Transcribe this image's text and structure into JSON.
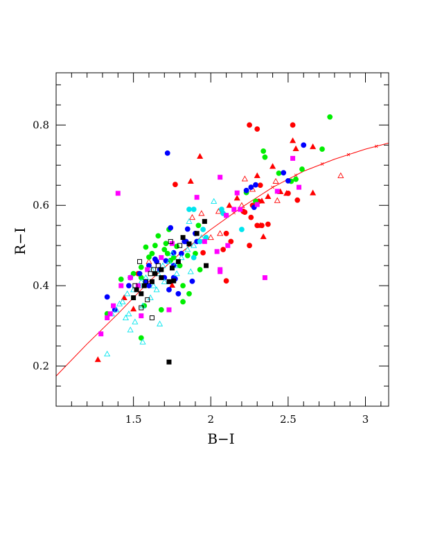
{
  "chart_data": {
    "type": "scatter",
    "xlabel": "B−I",
    "ylabel": "R−I",
    "xlim": [
      1.0,
      3.15
    ],
    "ylim": [
      0.1,
      0.93
    ],
    "xticks": [
      1.5,
      2,
      2.5,
      3
    ],
    "xtick_labels": [
      "1.5",
      "2",
      "2.5",
      "3"
    ],
    "yticks": [
      0.2,
      0.4,
      0.6,
      0.8
    ],
    "ytick_labels": [
      "0.2",
      "0.4",
      "0.6",
      "0.8"
    ],
    "grid": false,
    "colors": {
      "red": "#ff0000",
      "green": "#00ee00",
      "blue": "#0000ff",
      "cyan": "#00e5ee",
      "magenta": "#ff00ff",
      "black": "#000000"
    },
    "curve": {
      "color": "#ff0000",
      "x": [
        1.0,
        1.2,
        1.4,
        1.6,
        1.8,
        2.0,
        2.2,
        2.4,
        2.6,
        2.8,
        3.0,
        3.15
      ],
      "y": [
        0.175,
        0.255,
        0.33,
        0.41,
        0.48,
        0.54,
        0.595,
        0.645,
        0.685,
        0.715,
        0.74,
        0.755
      ],
      "markers_x": [
        2.15,
        2.4,
        2.55,
        2.72,
        2.89,
        3.07
      ]
    },
    "series": [
      {
        "marker": "circle",
        "color": "red",
        "filled": true,
        "x": [
          2.25,
          2.3,
          2.53,
          2.31,
          1.77,
          2.5,
          2.3,
          2.26,
          2.22,
          2.27,
          2.37,
          2.33,
          2.1,
          2.25,
          2.13,
          2.08,
          2.1,
          1.53,
          2.56,
          2.32,
          2.21,
          1.95
        ],
        "y": [
          0.8,
          0.79,
          0.8,
          0.61,
          0.652,
          0.63,
          0.55,
          0.57,
          0.583,
          0.6,
          0.553,
          0.55,
          0.53,
          0.5,
          0.51,
          0.49,
          0.412,
          0.43,
          0.613,
          0.65,
          0.585,
          0.482
        ]
      },
      {
        "marker": "triangle",
        "color": "red",
        "filled": true,
        "x": [
          1.93,
          1.87,
          2.53,
          2.55,
          2.66,
          2.66,
          2.4,
          2.45,
          2.12,
          2.17,
          2.3,
          2.33,
          2.37,
          2.49,
          1.27,
          1.5,
          1.44,
          1.75,
          2.32,
          2.34
        ],
        "y": [
          0.722,
          0.66,
          0.761,
          0.741,
          0.746,
          0.631,
          0.697,
          0.634,
          0.6,
          0.618,
          0.674,
          0.611,
          0.622,
          0.63,
          0.216,
          0.342,
          0.37,
          0.401,
          0.55,
          0.522
        ]
      },
      {
        "marker": "triangle",
        "color": "red",
        "filled": false,
        "x": [
          2.84,
          2.42,
          2.22,
          2.27,
          2.43,
          1.94,
          1.88,
          2.05,
          2.0,
          2.06,
          2.2,
          1.6
        ],
        "y": [
          0.674,
          0.66,
          0.666,
          0.64,
          0.612,
          0.58,
          0.57,
          0.585,
          0.52,
          0.53,
          0.6,
          0.46
        ]
      },
      {
        "marker": "circle",
        "color": "green",
        "filled": true,
        "x": [
          2.77,
          2.72,
          2.59,
          2.55,
          2.44,
          2.52,
          2.34,
          2.35,
          2.23,
          2.29,
          1.92,
          1.78,
          1.72,
          1.74,
          1.71,
          1.66,
          1.7,
          1.6,
          1.58,
          1.55,
          1.55,
          1.5,
          1.42,
          1.33,
          1.55,
          1.76,
          1.82,
          1.86,
          1.93,
          1.73,
          1.68,
          1.57,
          1.8,
          1.85,
          1.9,
          1.82,
          1.62,
          1.64
        ],
        "y": [
          0.82,
          0.74,
          0.69,
          0.665,
          0.68,
          0.66,
          0.735,
          0.72,
          0.632,
          0.61,
          0.55,
          0.498,
          0.48,
          0.463,
          0.505,
          0.524,
          0.49,
          0.471,
          0.496,
          0.446,
          0.42,
          0.43,
          0.416,
          0.33,
          0.27,
          0.47,
          0.4,
          0.38,
          0.44,
          0.54,
          0.34,
          0.35,
          0.45,
          0.475,
          0.48,
          0.36,
          0.48,
          0.5
        ]
      },
      {
        "marker": "circle",
        "color": "blue",
        "filled": true,
        "x": [
          1.72,
          2.6,
          2.47,
          2.5,
          2.29,
          2.26,
          2.23,
          1.74,
          1.85,
          1.9,
          1.84,
          1.76,
          1.81,
          1.77,
          1.83,
          1.65,
          1.64,
          1.6,
          1.67,
          1.71,
          1.76,
          1.6,
          1.58,
          1.54,
          1.47,
          1.48,
          1.33,
          1.38,
          1.76,
          1.79,
          1.88,
          2.28,
          1.91,
          1.7,
          1.73
        ],
        "y": [
          0.73,
          0.75,
          0.681,
          0.661,
          0.651,
          0.645,
          0.637,
          0.544,
          0.541,
          0.53,
          0.51,
          0.482,
          0.48,
          0.417,
          0.51,
          0.46,
          0.466,
          0.45,
          0.44,
          0.462,
          0.42,
          0.4,
          0.41,
          0.43,
          0.4,
          0.42,
          0.372,
          0.34,
          0.45,
          0.38,
          0.411,
          0.595,
          0.51,
          0.42,
          0.39
        ]
      },
      {
        "marker": "circle",
        "color": "cyan",
        "filled": true,
        "x": [
          1.86,
          1.89,
          2.1,
          2.2,
          2.07,
          2.08,
          1.97,
          1.93,
          1.95,
          1.89
        ],
        "y": [
          0.59,
          0.59,
          0.575,
          0.54,
          0.59,
          0.58,
          0.52,
          0.51,
          0.54,
          0.47
        ]
      },
      {
        "marker": "triangle",
        "color": "cyan",
        "filled": false,
        "x": [
          1.33,
          1.56,
          1.48,
          1.67,
          2.02,
          1.86,
          1.87,
          1.75,
          1.73,
          1.69,
          1.66,
          1.62,
          1.58,
          1.55,
          1.54,
          1.5,
          1.46,
          1.43,
          1.41,
          1.39,
          1.36,
          1.45,
          1.51,
          1.56,
          1.61,
          1.65,
          1.7,
          1.77,
          1.81,
          1.85,
          1.89,
          1.94,
          1.47,
          1.63,
          1.78
        ],
        "y": [
          0.23,
          0.26,
          0.29,
          0.305,
          0.61,
          0.56,
          0.435,
          0.48,
          0.46,
          0.45,
          0.43,
          0.44,
          0.42,
          0.41,
          0.4,
          0.39,
          0.38,
          0.36,
          0.355,
          0.34,
          0.33,
          0.32,
          0.31,
          0.35,
          0.37,
          0.39,
          0.41,
          0.45,
          0.47,
          0.49,
          0.5,
          0.52,
          0.33,
          0.4,
          0.43
        ]
      },
      {
        "marker": "square",
        "color": "magenta",
        "filled": true,
        "x": [
          1.4,
          1.91,
          2.06,
          2.35,
          2.53,
          2.57,
          2.43,
          2.19,
          2.15,
          2.1,
          2.06,
          2.04,
          1.96,
          1.75,
          1.68,
          1.59,
          1.53,
          1.48,
          1.42,
          1.37,
          1.35,
          1.33,
          1.29,
          1.55,
          1.73,
          2.06,
          2.3,
          2.11,
          2.17
        ],
        "y": [
          0.63,
          0.62,
          0.67,
          0.42,
          0.717,
          0.645,
          0.635,
          0.59,
          0.59,
          0.575,
          0.44,
          0.485,
          0.51,
          0.505,
          0.47,
          0.44,
          0.4,
          0.42,
          0.4,
          0.35,
          0.33,
          0.32,
          0.28,
          0.325,
          0.34,
          0.435,
          0.602,
          0.5,
          0.631
        ]
      },
      {
        "marker": "square",
        "color": "black",
        "filled": true,
        "x": [
          1.73,
          1.97,
          1.96,
          1.91,
          1.86,
          1.82,
          1.79,
          1.75,
          1.73,
          1.68,
          1.64,
          1.62,
          1.57,
          1.55,
          1.52,
          1.5,
          1.76,
          1.68
        ],
        "y": [
          0.21,
          0.45,
          0.56,
          0.53,
          0.504,
          0.52,
          0.46,
          0.444,
          0.41,
          0.42,
          0.43,
          0.41,
          0.4,
          0.38,
          0.39,
          0.37,
          0.412,
          0.44
        ]
      },
      {
        "marker": "square",
        "color": "black",
        "filled": false,
        "x": [
          1.54,
          1.58,
          1.61,
          1.62,
          1.59,
          1.63,
          1.55,
          1.51,
          1.74,
          1.66,
          1.8
        ],
        "y": [
          0.46,
          0.41,
          0.43,
          0.32,
          0.365,
          0.44,
          0.345,
          0.4,
          0.51,
          0.45,
          0.5
        ]
      }
    ]
  }
}
